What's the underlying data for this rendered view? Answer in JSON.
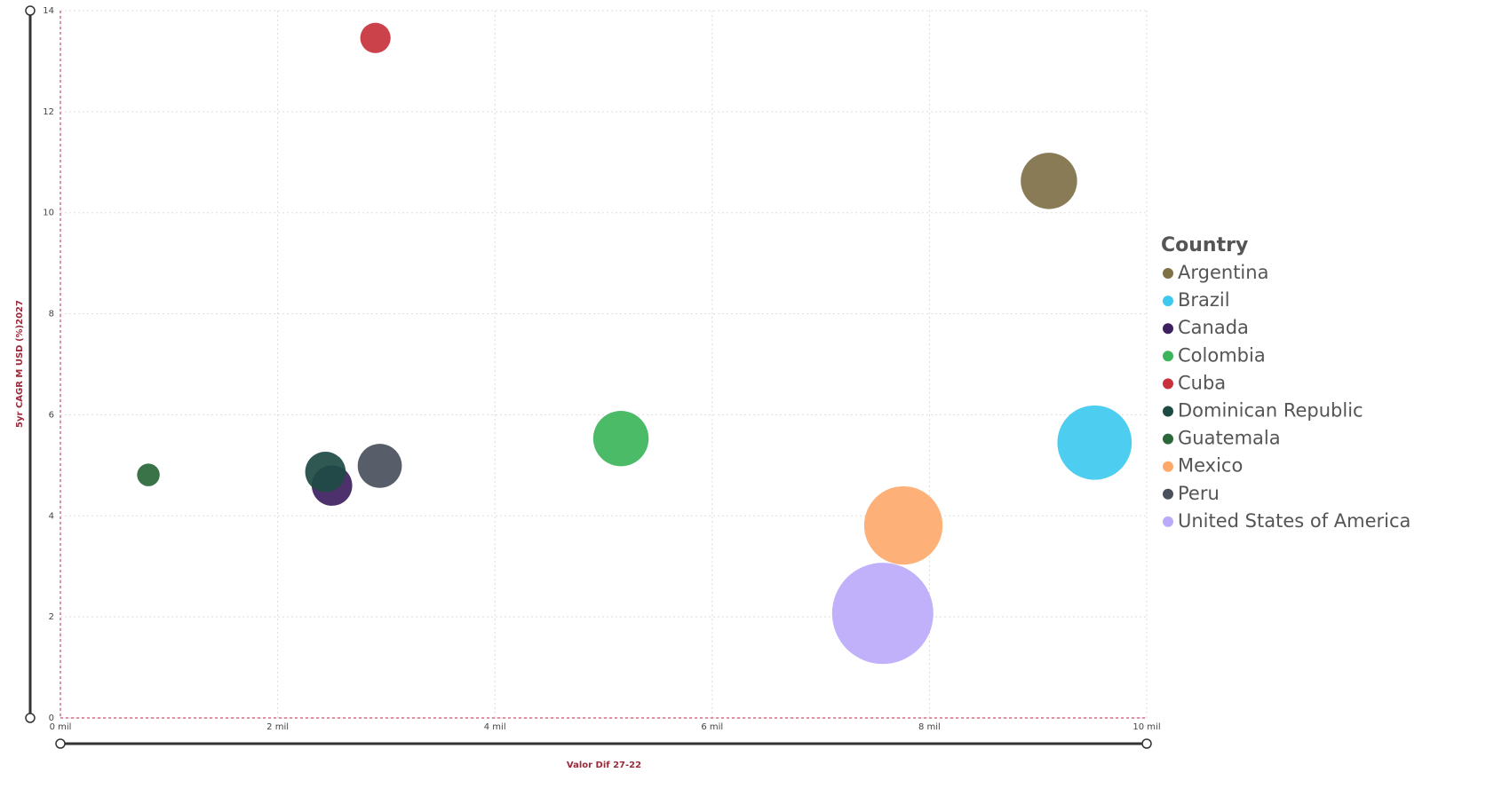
{
  "chart_data": {
    "type": "scatter",
    "x_label": "Valor Dif 27-22",
    "y_label": "5yr CAGR M USD (%)2027",
    "legend_title": "Country",
    "legend": "right",
    "grid": true,
    "xlim": [
      0,
      10
    ],
    "ylim": [
      0,
      14
    ],
    "xticks": [
      {
        "value": 0,
        "label": "0 mil"
      },
      {
        "value": 2,
        "label": "2 mil"
      },
      {
        "value": 4,
        "label": "4 mil"
      },
      {
        "value": 6,
        "label": "6 mil"
      },
      {
        "value": 8,
        "label": "8 mil"
      },
      {
        "value": 10,
        "label": "10 mil"
      }
    ],
    "yticks": [
      0,
      2,
      4,
      6,
      8,
      10,
      12,
      14
    ],
    "series": [
      {
        "name": "Argentina",
        "color": "#7f7046",
        "x": 9.1,
        "y": 10.63,
        "size": 31
      },
      {
        "name": "Brazil",
        "color": "#3ec9ef",
        "x": 9.52,
        "y": 5.45,
        "size": 54
      },
      {
        "name": "Canada",
        "color": "#3e2060",
        "x": 2.5,
        "y": 4.6,
        "size": 16
      },
      {
        "name": "Colombia",
        "color": "#3db55a",
        "x": 5.16,
        "y": 5.53,
        "size": 30
      },
      {
        "name": "Cuba",
        "color": "#c8323c",
        "x": 2.9,
        "y": 13.46,
        "size": 9
      },
      {
        "name": "Dominican Republic",
        "color": "#1e4a44",
        "x": 2.44,
        "y": 4.87,
        "size": 16
      },
      {
        "name": "Guatemala",
        "color": "#2a673a",
        "x": 0.81,
        "y": 4.81,
        "size": 5
      },
      {
        "name": "Mexico",
        "color": "#fda96b",
        "x": 7.76,
        "y": 3.81,
        "size": 60
      },
      {
        "name": "Peru",
        "color": "#4a505c",
        "x": 2.94,
        "y": 4.99,
        "size": 19
      },
      {
        "name": "United States of America",
        "color": "#bbaafa",
        "x": 7.57,
        "y": 2.07,
        "size": 100
      }
    ]
  }
}
